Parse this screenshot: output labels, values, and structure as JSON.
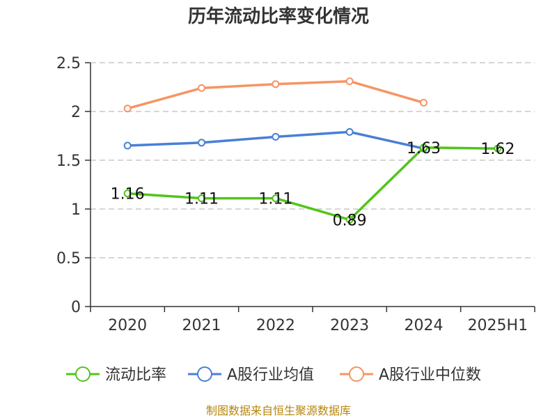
{
  "chart_data": {
    "type": "line",
    "title": "历年流动比率变化情况",
    "categories": [
      "2020",
      "2021",
      "2022",
      "2023",
      "2024",
      "2025H1"
    ],
    "y_ticks": [
      "0",
      "0.5",
      "1",
      "1.5",
      "2",
      "2.5"
    ],
    "ylim": [
      0,
      2.5
    ],
    "grid": true,
    "legend_position": "bottom",
    "series": [
      {
        "name": "流动比率",
        "color": "#52c41a",
        "values": [
          1.16,
          1.11,
          1.11,
          0.89,
          1.63,
          1.62
        ],
        "labels": [
          "1.16",
          "1.11",
          "1.11",
          "0.89",
          "1.63",
          "1.62"
        ]
      },
      {
        "name": "A股行业均值",
        "color": "#4a7fd6",
        "values": [
          1.65,
          1.68,
          1.74,
          1.79,
          1.62,
          null
        ]
      },
      {
        "name": "A股行业中位数",
        "color": "#f59563",
        "values": [
          2.03,
          2.24,
          2.28,
          2.31,
          2.09,
          null
        ]
      }
    ],
    "source": "制图数据来自恒生聚源数据库"
  }
}
